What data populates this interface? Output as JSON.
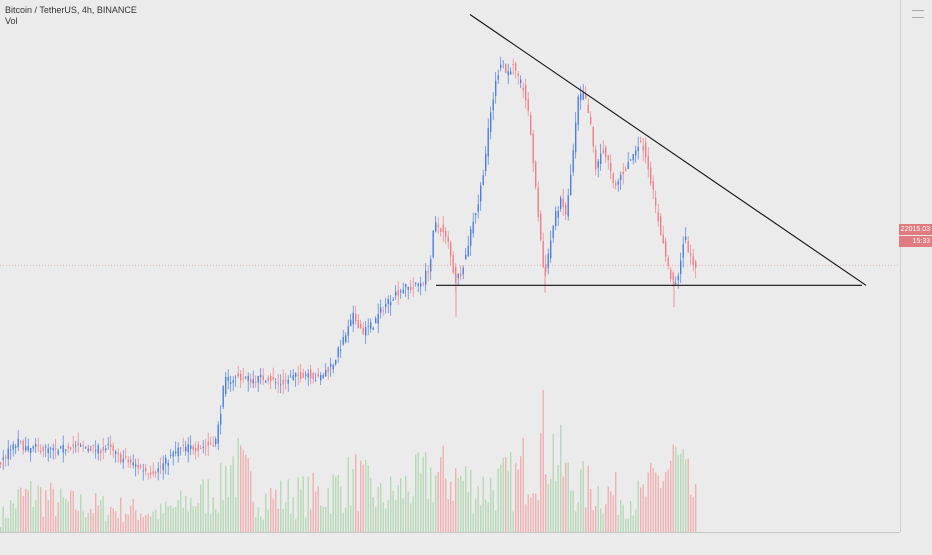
{
  "legend": {
    "symbol_line": "Bitcoin / TetherUS, 4h, BINANCE",
    "volume_label": "Vol"
  },
  "price_axis": {
    "last_price": "22015.03",
    "countdown": "15:33"
  },
  "colors": {
    "up": "#4a7fe0",
    "down": "#ef7f87",
    "vol_up": "#b7d9b7",
    "vol_down": "#f0b0b0",
    "trendline": "#111111",
    "price_line": "#e8a0a0"
  },
  "icons": [
    "chart-settings-icon"
  ],
  "chart_data": {
    "type": "candlestick",
    "interval": "4h",
    "ylim": [
      16500,
      27500
    ],
    "last_price": 22015.03,
    "close_trajectory": [
      [
        0,
        17850
      ],
      [
        10,
        18150
      ],
      [
        20,
        18350
      ],
      [
        30,
        18200
      ],
      [
        40,
        18250
      ],
      [
        50,
        18200
      ],
      [
        60,
        18150
      ],
      [
        70,
        18300
      ],
      [
        80,
        18250
      ],
      [
        90,
        18250
      ],
      [
        100,
        18200
      ],
      [
        110,
        18250
      ],
      [
        120,
        18050
      ],
      [
        130,
        17950
      ],
      [
        140,
        17850
      ],
      [
        150,
        17750
      ],
      [
        160,
        17800
      ],
      [
        170,
        18000
      ],
      [
        180,
        18200
      ],
      [
        190,
        18250
      ],
      [
        200,
        18250
      ],
      [
        210,
        18300
      ],
      [
        218,
        18400
      ],
      [
        222,
        18950
      ],
      [
        226,
        19600
      ],
      [
        230,
        19650
      ],
      [
        240,
        19700
      ],
      [
        255,
        19650
      ],
      [
        270,
        19700
      ],
      [
        280,
        19550
      ],
      [
        295,
        19700
      ],
      [
        310,
        19800
      ],
      [
        320,
        19650
      ],
      [
        335,
        20000
      ],
      [
        345,
        20450
      ],
      [
        355,
        20950
      ],
      [
        365,
        20650
      ],
      [
        375,
        20800
      ],
      [
        385,
        21150
      ],
      [
        395,
        21400
      ],
      [
        405,
        21550
      ],
      [
        415,
        21550
      ],
      [
        425,
        21700
      ],
      [
        432,
        22050
      ],
      [
        436,
        22850
      ],
      [
        442,
        22800
      ],
      [
        450,
        22450
      ],
      [
        457,
        21700
      ],
      [
        462,
        21850
      ],
      [
        468,
        22250
      ],
      [
        474,
        22900
      ],
      [
        480,
        23300
      ],
      [
        486,
        24100
      ],
      [
        492,
        25100
      ],
      [
        498,
        25850
      ],
      [
        504,
        26350
      ],
      [
        508,
        25950
      ],
      [
        514,
        26150
      ],
      [
        520,
        25850
      ],
      [
        526,
        25650
      ],
      [
        532,
        24850
      ],
      [
        538,
        23450
      ],
      [
        542,
        22650
      ],
      [
        546,
        21750
      ],
      [
        550,
        22250
      ],
      [
        556,
        22950
      ],
      [
        562,
        23350
      ],
      [
        568,
        23050
      ],
      [
        574,
        24150
      ],
      [
        580,
        25450
      ],
      [
        586,
        25550
      ],
      [
        592,
        24950
      ],
      [
        598,
        23950
      ],
      [
        604,
        24450
      ],
      [
        610,
        24150
      ],
      [
        616,
        23550
      ],
      [
        622,
        23850
      ],
      [
        628,
        24050
      ],
      [
        634,
        24250
      ],
      [
        640,
        24550
      ],
      [
        646,
        24450
      ],
      [
        652,
        23850
      ],
      [
        658,
        23150
      ],
      [
        664,
        22550
      ],
      [
        670,
        21950
      ],
      [
        676,
        21550
      ],
      [
        680,
        21750
      ],
      [
        684,
        22450
      ],
      [
        688,
        22550
      ],
      [
        692,
        22150
      ],
      [
        696,
        22015
      ]
    ],
    "volume_profile": [
      [
        0,
        0.15
      ],
      [
        18,
        0.35
      ],
      [
        35,
        0.4
      ],
      [
        60,
        0.3
      ],
      [
        110,
        0.25
      ],
      [
        160,
        0.2
      ],
      [
        220,
        0.45
      ],
      [
        230,
        0.75
      ],
      [
        260,
        0.35
      ],
      [
        320,
        0.4
      ],
      [
        355,
        0.55
      ],
      [
        380,
        0.35
      ],
      [
        435,
        0.6
      ],
      [
        460,
        0.55
      ],
      [
        480,
        0.45
      ],
      [
        515,
        0.55
      ],
      [
        545,
        1.0
      ],
      [
        570,
        0.5
      ],
      [
        610,
        0.4
      ],
      [
        640,
        0.35
      ],
      [
        675,
        0.75
      ],
      [
        696,
        0.3
      ]
    ],
    "annotations": [
      {
        "type": "trendline",
        "label": "",
        "from": [
          470,
          27200
        ],
        "to": [
          866,
          21600
        ]
      },
      {
        "type": "horizontal",
        "label": "",
        "from": [
          436,
          21600
        ],
        "to": [
          862,
          21600
        ]
      }
    ],
    "title": "",
    "xlabel": "",
    "ylabel": ""
  }
}
